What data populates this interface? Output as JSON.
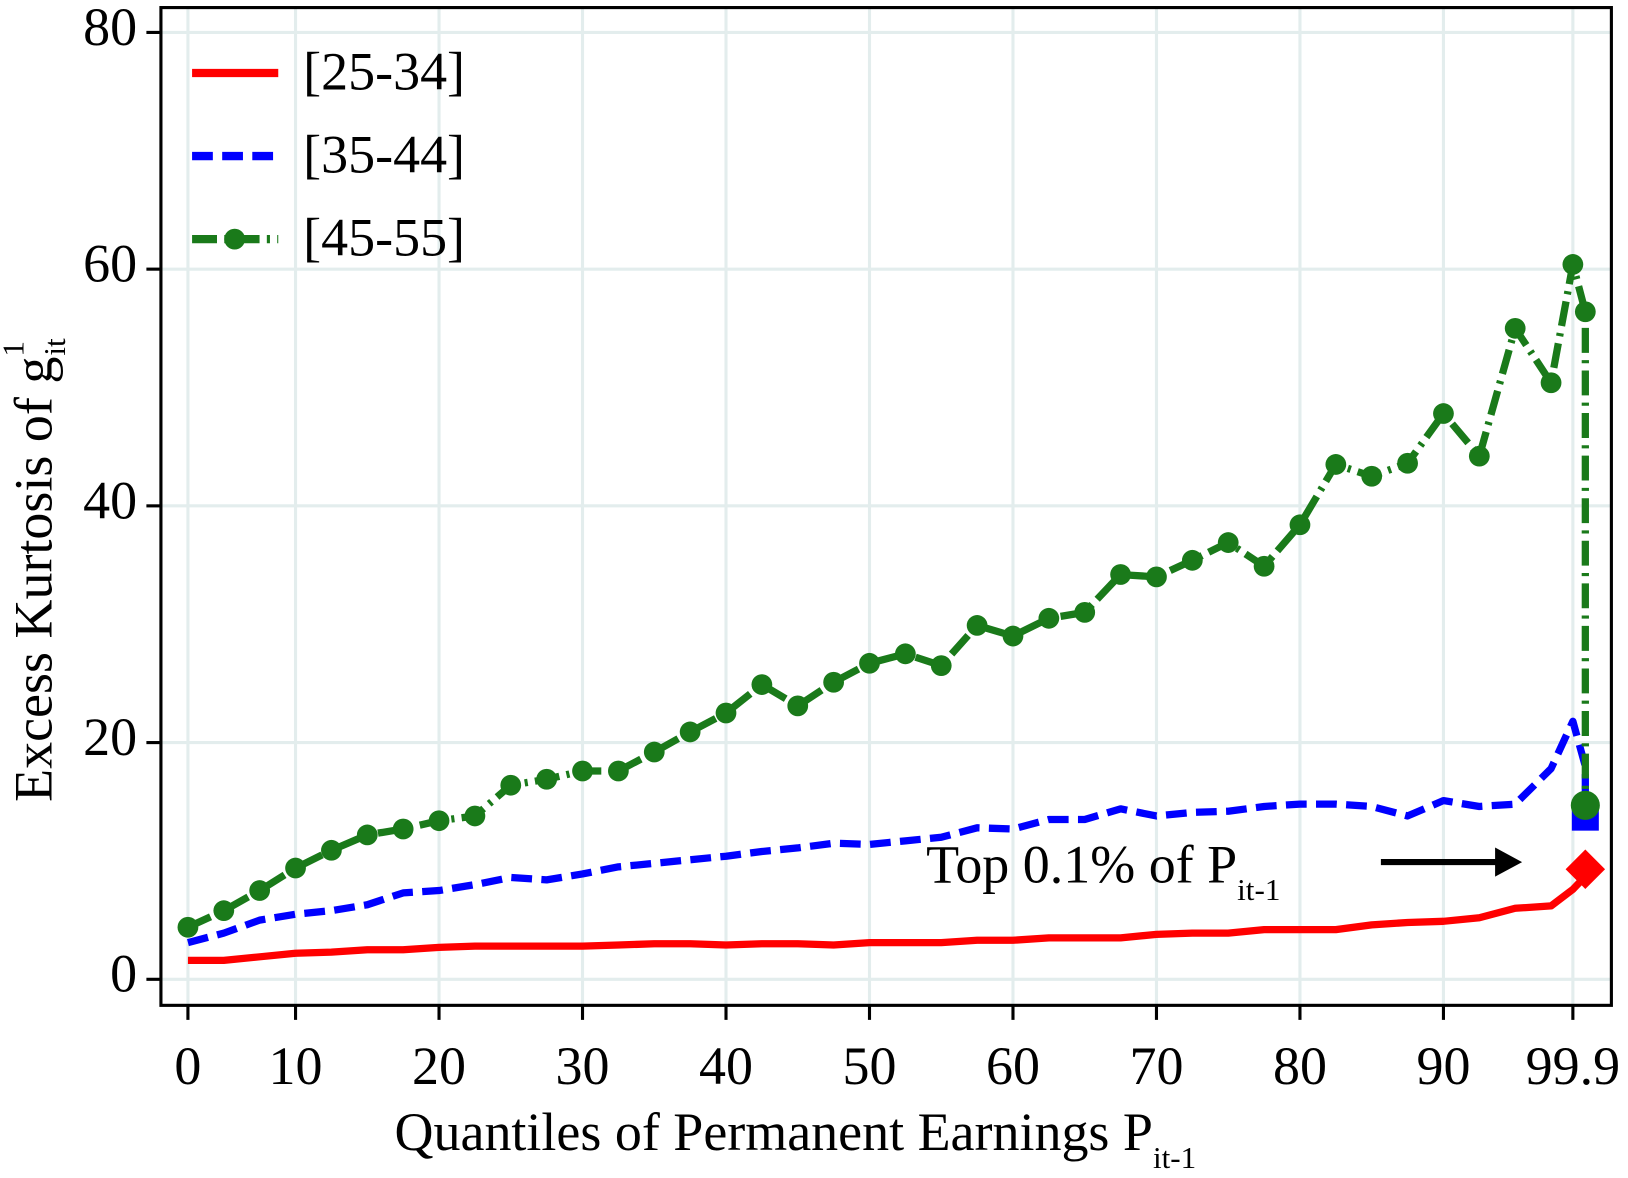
{
  "chart_data": {
    "type": "line",
    "xlabel": {
      "text": "Quantiles of Permanent Earnings P",
      "sub": "it-1"
    },
    "ylabel": {
      "text": "Excess Kurtosis of g",
      "sup": "1",
      "sub": "it"
    },
    "annotation": {
      "text": "Top 0.1% of P",
      "sub": "it-1"
    },
    "categories": [
      "0",
      null,
      null,
      "10",
      null,
      null,
      null,
      "20",
      null,
      null,
      null,
      "30",
      null,
      null,
      null,
      "40",
      null,
      null,
      null,
      "50",
      null,
      null,
      null,
      "60",
      null,
      null,
      null,
      "70",
      null,
      null,
      null,
      "80",
      null,
      null,
      null,
      "90",
      null,
      null,
      null,
      "99.9",
      null,
      null
    ],
    "ylim": [
      -2.2,
      82.1
    ],
    "yticks": [
      0,
      20,
      40,
      60,
      80
    ],
    "grid": true,
    "legend": "top-left",
    "series": [
      {
        "name": "[25-34]",
        "color": "#ff0000",
        "dash": "solid",
        "marker": "none",
        "end_marker": "diamond",
        "values": [
          1.6,
          1.6,
          1.9,
          2.2,
          2.3,
          2.5,
          2.5,
          2.7,
          2.8,
          2.8,
          2.8,
          2.8,
          2.9,
          3.0,
          3.0,
          2.9,
          3.0,
          3.0,
          2.9,
          3.1,
          3.1,
          3.1,
          3.3,
          3.3,
          3.5,
          3.5,
          3.5,
          3.8,
          3.9,
          3.9,
          4.2,
          4.2,
          4.2,
          4.6,
          4.8,
          4.9,
          5.2,
          6.0,
          6.2,
          7.6,
          8.7,
          9.3
        ]
      },
      {
        "name": "[35-44]",
        "color": "#0000ff",
        "dash": "dashed",
        "marker": "none",
        "end_marker": "square",
        "values": [
          3.1,
          3.9,
          5.0,
          5.5,
          5.8,
          6.3,
          7.3,
          7.5,
          8.0,
          8.6,
          8.4,
          8.9,
          9.5,
          9.8,
          10.1,
          10.4,
          10.8,
          11.1,
          11.5,
          11.4,
          11.7,
          12.0,
          12.8,
          12.7,
          13.5,
          13.5,
          14.4,
          13.8,
          14.1,
          14.2,
          14.6,
          14.8,
          14.8,
          14.6,
          13.8,
          15.1,
          14.6,
          14.8,
          17.8,
          21.8,
          18,
          13.7
        ]
      },
      {
        "name": "[45-55]",
        "color": "#1a7a1a",
        "dash": "dashdot",
        "marker": "circle",
        "end_marker": "circle",
        "values": [
          4.4,
          5.8,
          7.5,
          9.4,
          10.9,
          12.2,
          12.7,
          13.4,
          13.8,
          16.4,
          16.9,
          17.6,
          17.6,
          19.2,
          20.9,
          22.5,
          24.9,
          23.1,
          25.1,
          26.7,
          27.5,
          26.5,
          29.9,
          29.0,
          30.5,
          31.0,
          34.2,
          34.0,
          35.4,
          36.9,
          34.9,
          38.4,
          43.5,
          42.5,
          43.6,
          47.8,
          44.2,
          55.0,
          50.4,
          60.4,
          56.4,
          14.7
        ]
      }
    ]
  }
}
